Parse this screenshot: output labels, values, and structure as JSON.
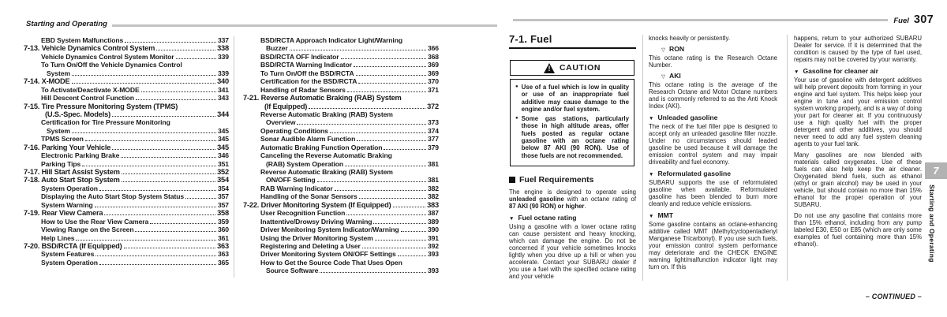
{
  "colors": {
    "page_bg": "#ffffff",
    "text": "#1a1a1a",
    "header_rule_gray": "#c3c3c3",
    "column_divider_gray": "#c9c9c9",
    "edge_tab_gray": "#b2b2b2",
    "caution_border": "#111111"
  },
  "left_page": {
    "header": "Starting and Operating",
    "toc_columns": [
      [
        {
          "l": 1,
          "t": "EBD System Malfunctions",
          "p": "337"
        },
        {
          "l": 0,
          "t": "7-13. Vehicle Dynamics Control System",
          "p": "338"
        },
        {
          "l": 1,
          "t": "Vehicle Dynamics Control System Monitor",
          "p": "339"
        },
        {
          "l": 1,
          "pre": [
            "To Turn On/Off the Vehicle Dynamics Control"
          ],
          "t": "System",
          "p": "339"
        },
        {
          "l": 0,
          "t": "7-14. X-MODE",
          "p": "340"
        },
        {
          "l": 1,
          "t": "To Activate/Deactivate X-MODE",
          "p": "341"
        },
        {
          "l": 1,
          "t": "Hill Descent Control Function",
          "p": "343"
        },
        {
          "l": 0,
          "pre": [
            "7-15. Tire Pressure Monitoring System (TPMS)"
          ],
          "t": "(U.S.-Spec. Models)",
          "p": "344"
        },
        {
          "l": 1,
          "pre": [
            "Certification for Tire Pressure Monitoring"
          ],
          "t": "System",
          "p": "345"
        },
        {
          "l": 1,
          "t": "TPMS Screen",
          "p": "345"
        },
        {
          "l": 0,
          "t": "7-16. Parking Your Vehicle",
          "p": "345"
        },
        {
          "l": 1,
          "t": "Electronic Parking Brake",
          "p": "346"
        },
        {
          "l": 1,
          "t": "Parking Tips",
          "p": "351"
        },
        {
          "l": 0,
          "t": "7-17. Hill Start Assist System",
          "p": "352"
        },
        {
          "l": 0,
          "t": "7-18. Auto Start Stop System",
          "p": "354"
        },
        {
          "l": 1,
          "t": "System Operation",
          "p": "354"
        },
        {
          "l": 1,
          "t": "Displaying the Auto Start Stop System Status",
          "p": "357"
        },
        {
          "l": 1,
          "t": "System Warning",
          "p": "357"
        },
        {
          "l": 0,
          "t": "7-19. Rear View Camera",
          "p": "358"
        },
        {
          "l": 1,
          "t": "How to Use the Rear View Camera",
          "p": "359"
        },
        {
          "l": 1,
          "t": "Viewing Range on the Screen",
          "p": "360"
        },
        {
          "l": 1,
          "t": "Help Lines",
          "p": "361"
        },
        {
          "l": 0,
          "t": "7-20. BSD/RCTA (If Equipped)",
          "p": "363"
        },
        {
          "l": 1,
          "t": "System Features",
          "p": "363"
        },
        {
          "l": 1,
          "t": "System Operation",
          "p": "365"
        }
      ],
      [
        {
          "l": 1,
          "pre": [
            "BSD/RCTA Approach Indicator Light/Warning"
          ],
          "t": "Buzzer",
          "p": "366"
        },
        {
          "l": 1,
          "t": "BSD/RCTA OFF Indicator",
          "p": "368"
        },
        {
          "l": 1,
          "t": "BSD/RCTA Warning Indicator",
          "p": "369"
        },
        {
          "l": 1,
          "t": "To Turn On/Off the BSD/RCTA",
          "p": "369"
        },
        {
          "l": 1,
          "t": "Certification for the BSD/RCTA",
          "p": "370"
        },
        {
          "l": 1,
          "t": "Handling of Radar Sensors",
          "p": "371"
        },
        {
          "l": 0,
          "pre": [
            "7-21. Reverse Automatic Braking (RAB) System"
          ],
          "t": "(If Equipped)",
          "p": "372"
        },
        {
          "l": 1,
          "pre": [
            "Reverse Automatic Braking (RAB) System"
          ],
          "t": "Overview",
          "p": "373"
        },
        {
          "l": 1,
          "t": "Operating Conditions",
          "p": "374"
        },
        {
          "l": 1,
          "t": "Sonar Audible Alarm Function",
          "p": "377"
        },
        {
          "l": 1,
          "t": "Automatic Braking Function Operation",
          "p": "379"
        },
        {
          "l": 1,
          "pre": [
            "Canceling the Reverse Automatic Braking"
          ],
          "t": "(RAB) System Operation",
          "p": "381"
        },
        {
          "l": 1,
          "pre": [
            "Reverse Automatic Braking (RAB) System"
          ],
          "t": "ON/OFF Setting",
          "p": "381"
        },
        {
          "l": 1,
          "t": "RAB Warning Indicator",
          "p": "382"
        },
        {
          "l": 1,
          "t": "Handling of the Sonar Sensors",
          "p": "382"
        },
        {
          "l": 0,
          "t": "7-22. Driver Monitoring System (If Equipped)",
          "p": "383"
        },
        {
          "l": 1,
          "t": "User Recognition Function",
          "p": "387"
        },
        {
          "l": 1,
          "t": "Inattentive/Drowsy Driving Warning",
          "p": "389"
        },
        {
          "l": 1,
          "t": "Driver Monitoring System Indicator/Warning",
          "p": "390"
        },
        {
          "l": 1,
          "t": "Using the Driver Monitoring System",
          "p": "391"
        },
        {
          "l": 1,
          "t": "Registering and Deleting a User",
          "p": "392"
        },
        {
          "l": 1,
          "t": "Driver Monitoring System ON/OFF Settings",
          "p": "393"
        },
        {
          "l": 1,
          "pre": [
            "How to Get the Source Code That Uses Open"
          ],
          "t": "Source Software",
          "p": "393"
        }
      ]
    ]
  },
  "right_page": {
    "header": {
      "chapter": "Fuel",
      "page_number": "307"
    },
    "title": "7-1. Fuel",
    "caution": {
      "label": "CAUTION",
      "bullets": [
        "Use of a fuel which is low in quality or use of an inappropriate fuel additive may cause damage to the engine and/or fuel system.",
        "Some gas stations, particularly those in high altitude areas, offer fuels posted as regular octane gasoline with an octane rating below 87 AKI (90 RON). Use of those fuels are not recommended."
      ]
    },
    "columns": [
      [
        {
          "type": "section",
          "text": "Fuel Requirements"
        },
        {
          "type": "p",
          "runs": [
            {
              "t": "The engine is designed to operate using "
            },
            {
              "t": "unleaded gasoline",
              "b": true
            },
            {
              "t": " with an octane rating of "
            },
            {
              "t": "87 AKI (90 RON) or higher",
              "b": true
            },
            {
              "t": "."
            }
          ]
        },
        {
          "type": "sub",
          "text": "Fuel octane rating"
        },
        {
          "type": "p",
          "runs": [
            {
              "t": "Using a gasoline with a lower octane rating can cause persistent and heavy knocking, which can damage the engine. Do not be concerned if your vehicle sometimes knocks lightly when you drive up a hill or when you accelerate. Contact your SUBARU dealer if you use a fuel with the specified octane rating and your vehicle"
            }
          ]
        }
      ],
      [
        {
          "type": "p",
          "runs": [
            {
              "t": "knocks heavily or persistently."
            }
          ]
        },
        {
          "type": "minor",
          "text": "RON"
        },
        {
          "type": "p",
          "runs": [
            {
              "t": "This octane rating is the Research Octane Number."
            }
          ]
        },
        {
          "type": "minor",
          "text": "AKI"
        },
        {
          "type": "p",
          "runs": [
            {
              "t": "This octane rating is the average of the Research Octane and Motor Octane numbers and is commonly referred to as the Anti Knock Index (AKI)."
            }
          ]
        },
        {
          "type": "sub",
          "text": "Unleaded gasoline"
        },
        {
          "type": "p",
          "runs": [
            {
              "t": "The neck of the fuel filler pipe is designed to accept only an unleaded gasoline filler nozzle. Under no circumstances should leaded gasoline be used because it will damage the emission control system and may impair driveability and fuel economy."
            }
          ]
        },
        {
          "type": "sub",
          "text": "Reformulated gasoline"
        },
        {
          "type": "p",
          "runs": [
            {
              "t": "SUBARU supports the use of reformulated gasoline when available. Reformulated gasoline has been blended to burn more cleanly and reduce vehicle emissions."
            }
          ]
        },
        {
          "type": "sub",
          "text": "MMT"
        },
        {
          "type": "p",
          "runs": [
            {
              "t": "Some gasoline contains an octane-enhancing additive called MMT (Methylcyclopentadienyl Manganese Tricarbonyl). If you use such fuels, your emission control system performance may deteriorate and the CHECK ENGINE warning light/malfunction indicator light may turn on. If this"
            }
          ]
        }
      ],
      [
        {
          "type": "p",
          "runs": [
            {
              "t": "happens, return to your authorized SUBARU Dealer for service. If it is determined that the condition is caused by the type of fuel used, repairs may not be covered by your warranty."
            }
          ]
        },
        {
          "type": "sub",
          "text": "Gasoline for cleaner air"
        },
        {
          "type": "p",
          "runs": [
            {
              "t": "Your use of gasoline with detergent additives will help prevent deposits from forming in your engine and fuel system. This helps keep your engine in tune and your emission control system working properly, and is a way of doing your part for cleaner air. If you continuously use a high quality fuel with the proper detergent and other additives, you should never need to add any fuel system cleaning agents to your fuel tank."
            }
          ]
        },
        {
          "type": "p",
          "sp": true,
          "runs": [
            {
              "t": "Many gasolines are now blended with materials called oxygenates. Use of these fuels can also help keep the air cleaner. Oxygenated blend fuels, such as ethanol (ethyl or grain alcohol) may be used in your vehicle, but should contain no more than 15% ethanol for the proper operation of your SUBARU."
            }
          ]
        },
        {
          "type": "p",
          "sp": true,
          "runs": [
            {
              "t": "Do not use any gasoline that contains more than 15% ethanol, including from any pump labeled E30, E50 or E85 (which are only some examples of fuel containing more than 15% ethanol)."
            }
          ]
        }
      ]
    ],
    "continued": "– CONTINUED –"
  },
  "edge_tab": {
    "number": "7",
    "label": "Starting and Operating"
  },
  "icons": {
    "caution": "warning-triangle-icon",
    "section_heading": "black-square-icon",
    "sub_heading": "filled-down-triangle-icon",
    "minor_heading": "open-down-triangle-icon",
    "triangle_filled": "▼",
    "triangle_open": "▽",
    "bullet": "●"
  }
}
